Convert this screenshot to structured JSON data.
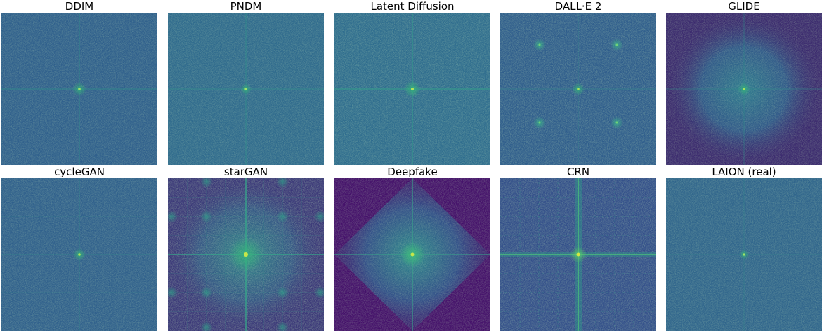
{
  "panels": [
    {
      "title": "DDIM",
      "image": "fft-spectrum-ddim"
    },
    {
      "title": "PNDM",
      "image": "fft-spectrum-pndm"
    },
    {
      "title": "Latent Diffusion",
      "image": "fft-spectrum-latent-diffusion"
    },
    {
      "title": "DALL·E 2",
      "image": "fft-spectrum-dalle2"
    },
    {
      "title": "GLIDE",
      "image": "fft-spectrum-glide"
    },
    {
      "title": "cycleGAN",
      "image": "fft-spectrum-cyclegan"
    },
    {
      "title": "starGAN",
      "image": "fft-spectrum-stargan"
    },
    {
      "title": "Deepfake",
      "image": "fft-spectrum-deepfake"
    },
    {
      "title": "CRN",
      "image": "fft-spectrum-crn"
    },
    {
      "title": "LAION (real)",
      "image": "fft-spectrum-laion-real"
    }
  ],
  "colors": {
    "cmap_low": "#440154",
    "cmap_mid": "#31688e",
    "cmap_high": "#35b779",
    "cmap_peak": "#fde725"
  }
}
